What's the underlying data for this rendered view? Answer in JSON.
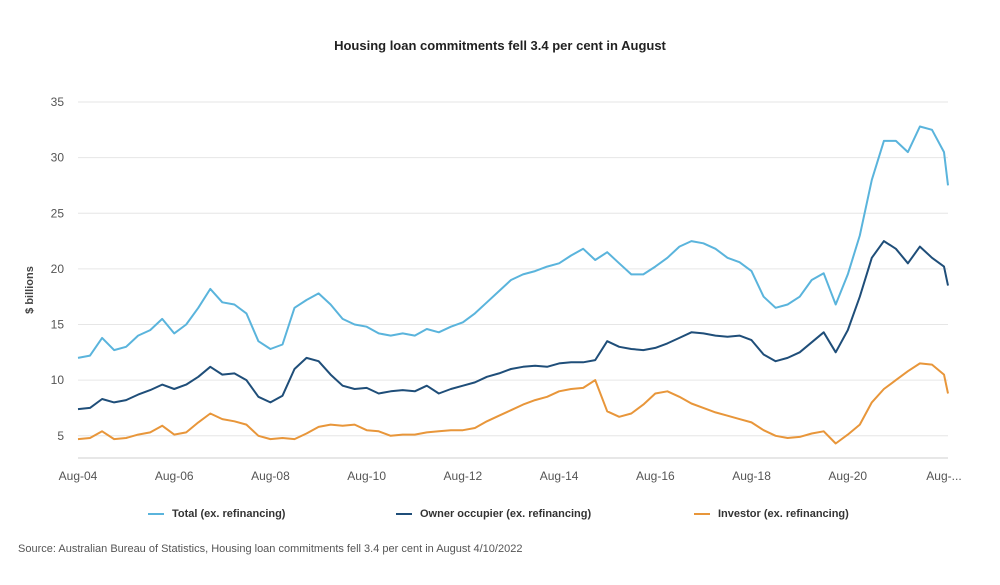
{
  "chart_data": {
    "type": "line",
    "title": "Housing loan commitments fell 3.4 per cent in August",
    "ylabel": "$ billions",
    "xlabel": "",
    "ylim": [
      3,
      35
    ],
    "yticks": [
      5,
      10,
      15,
      20,
      25,
      30,
      35
    ],
    "xlim": [
      "Aug-04",
      "Sep-22"
    ],
    "xticks": [
      {
        "date": "Aug-04",
        "label": "Aug-04"
      },
      {
        "date": "Aug-06",
        "label": "Aug-06"
      },
      {
        "date": "Aug-08",
        "label": "Aug-08"
      },
      {
        "date": "Aug-10",
        "label": "Aug-10"
      },
      {
        "date": "Aug-12",
        "label": "Aug-12"
      },
      {
        "date": "Aug-14",
        "label": "Aug-14"
      },
      {
        "date": "Aug-16",
        "label": "Aug-16"
      },
      {
        "date": "Aug-18",
        "label": "Aug-18"
      },
      {
        "date": "Aug-20",
        "label": "Aug-20"
      },
      {
        "date": "Aug-22",
        "label": "Aug-..."
      }
    ],
    "grid": "horizontal",
    "legend_position": "bottom",
    "series": [
      {
        "name": "Total (ex. refinancing)",
        "color": "#5ab4dc",
        "points": [
          [
            "Aug-04",
            12.0
          ],
          [
            "Nov-04",
            12.2
          ],
          [
            "Feb-05",
            13.8
          ],
          [
            "May-05",
            12.7
          ],
          [
            "Aug-05",
            13.0
          ],
          [
            "Nov-05",
            14.0
          ],
          [
            "Feb-06",
            14.5
          ],
          [
            "May-06",
            15.5
          ],
          [
            "Aug-06",
            14.2
          ],
          [
            "Nov-06",
            15.0
          ],
          [
            "Feb-07",
            16.5
          ],
          [
            "May-07",
            18.2
          ],
          [
            "Aug-07",
            17.0
          ],
          [
            "Nov-07",
            16.8
          ],
          [
            "Feb-08",
            16.0
          ],
          [
            "May-08",
            13.5
          ],
          [
            "Aug-08",
            12.8
          ],
          [
            "Nov-08",
            13.2
          ],
          [
            "Feb-09",
            16.5
          ],
          [
            "May-09",
            17.2
          ],
          [
            "Aug-09",
            17.8
          ],
          [
            "Nov-09",
            16.8
          ],
          [
            "Feb-10",
            15.5
          ],
          [
            "May-10",
            15.0
          ],
          [
            "Aug-10",
            14.8
          ],
          [
            "Nov-10",
            14.2
          ],
          [
            "Feb-11",
            14.0
          ],
          [
            "May-11",
            14.2
          ],
          [
            "Aug-11",
            14.0
          ],
          [
            "Nov-11",
            14.6
          ],
          [
            "Feb-12",
            14.3
          ],
          [
            "May-12",
            14.8
          ],
          [
            "Aug-12",
            15.2
          ],
          [
            "Nov-12",
            16.0
          ],
          [
            "Feb-13",
            17.0
          ],
          [
            "May-13",
            18.0
          ],
          [
            "Aug-13",
            19.0
          ],
          [
            "Nov-13",
            19.5
          ],
          [
            "Feb-14",
            19.8
          ],
          [
            "May-14",
            20.2
          ],
          [
            "Aug-14",
            20.5
          ],
          [
            "Nov-14",
            21.2
          ],
          [
            "Feb-15",
            21.8
          ],
          [
            "May-15",
            20.8
          ],
          [
            "Aug-15",
            21.5
          ],
          [
            "Nov-15",
            20.5
          ],
          [
            "Feb-16",
            19.5
          ],
          [
            "May-16",
            19.5
          ],
          [
            "Aug-16",
            20.2
          ],
          [
            "Nov-16",
            21.0
          ],
          [
            "Feb-17",
            22.0
          ],
          [
            "May-17",
            22.5
          ],
          [
            "Aug-17",
            22.3
          ],
          [
            "Nov-17",
            21.8
          ],
          [
            "Feb-18",
            21.0
          ],
          [
            "May-18",
            20.6
          ],
          [
            "Aug-18",
            19.8
          ],
          [
            "Nov-18",
            17.5
          ],
          [
            "Feb-19",
            16.5
          ],
          [
            "May-19",
            16.8
          ],
          [
            "Aug-19",
            17.5
          ],
          [
            "Nov-19",
            19.0
          ],
          [
            "Feb-20",
            19.6
          ],
          [
            "May-20",
            16.8
          ],
          [
            "Aug-20",
            19.5
          ],
          [
            "Nov-20",
            23.0
          ],
          [
            "Feb-21",
            28.0
          ],
          [
            "May-21",
            31.5
          ],
          [
            "Aug-21",
            31.5
          ],
          [
            "Nov-21",
            30.5
          ],
          [
            "Feb-22",
            32.8
          ],
          [
            "May-22",
            32.5
          ],
          [
            "Aug-22",
            30.5
          ],
          [
            "Sep-22",
            27.5
          ]
        ]
      },
      {
        "name": "Owner occupier (ex. refinancing)",
        "color": "#1f4e79",
        "points": [
          [
            "Aug-04",
            7.4
          ],
          [
            "Nov-04",
            7.5
          ],
          [
            "Feb-05",
            8.3
          ],
          [
            "May-05",
            8.0
          ],
          [
            "Aug-05",
            8.2
          ],
          [
            "Nov-05",
            8.7
          ],
          [
            "Feb-06",
            9.1
          ],
          [
            "May-06",
            9.6
          ],
          [
            "Aug-06",
            9.2
          ],
          [
            "Nov-06",
            9.6
          ],
          [
            "Feb-07",
            10.3
          ],
          [
            "May-07",
            11.2
          ],
          [
            "Aug-07",
            10.5
          ],
          [
            "Nov-07",
            10.6
          ],
          [
            "Feb-08",
            10.0
          ],
          [
            "May-08",
            8.5
          ],
          [
            "Aug-08",
            8.0
          ],
          [
            "Nov-08",
            8.6
          ],
          [
            "Feb-09",
            11.0
          ],
          [
            "May-09",
            12.0
          ],
          [
            "Aug-09",
            11.7
          ],
          [
            "Nov-09",
            10.5
          ],
          [
            "Feb-10",
            9.5
          ],
          [
            "May-10",
            9.2
          ],
          [
            "Aug-10",
            9.3
          ],
          [
            "Nov-10",
            8.8
          ],
          [
            "Feb-11",
            9.0
          ],
          [
            "May-11",
            9.1
          ],
          [
            "Aug-11",
            9.0
          ],
          [
            "Nov-11",
            9.5
          ],
          [
            "Feb-12",
            8.8
          ],
          [
            "May-12",
            9.2
          ],
          [
            "Aug-12",
            9.5
          ],
          [
            "Nov-12",
            9.8
          ],
          [
            "Feb-13",
            10.3
          ],
          [
            "May-13",
            10.6
          ],
          [
            "Aug-13",
            11.0
          ],
          [
            "Nov-13",
            11.2
          ],
          [
            "Feb-14",
            11.3
          ],
          [
            "May-14",
            11.2
          ],
          [
            "Aug-14",
            11.5
          ],
          [
            "Nov-14",
            11.6
          ],
          [
            "Feb-15",
            11.6
          ],
          [
            "May-15",
            11.8
          ],
          [
            "Aug-15",
            13.5
          ],
          [
            "Nov-15",
            13.0
          ],
          [
            "Feb-16",
            12.8
          ],
          [
            "May-16",
            12.7
          ],
          [
            "Aug-16",
            12.9
          ],
          [
            "Nov-16",
            13.3
          ],
          [
            "Feb-17",
            13.8
          ],
          [
            "May-17",
            14.3
          ],
          [
            "Aug-17",
            14.2
          ],
          [
            "Nov-17",
            14.0
          ],
          [
            "Feb-18",
            13.9
          ],
          [
            "May-18",
            14.0
          ],
          [
            "Aug-18",
            13.6
          ],
          [
            "Nov-18",
            12.3
          ],
          [
            "Feb-19",
            11.7
          ],
          [
            "May-19",
            12.0
          ],
          [
            "Aug-19",
            12.5
          ],
          [
            "Nov-19",
            13.4
          ],
          [
            "Feb-20",
            14.3
          ],
          [
            "May-20",
            12.5
          ],
          [
            "Aug-20",
            14.5
          ],
          [
            "Nov-20",
            17.5
          ],
          [
            "Feb-21",
            21.0
          ],
          [
            "May-21",
            22.5
          ],
          [
            "Aug-21",
            21.8
          ],
          [
            "Nov-21",
            20.5
          ],
          [
            "Feb-22",
            22.0
          ],
          [
            "May-22",
            21.0
          ],
          [
            "Aug-22",
            20.2
          ],
          [
            "Sep-22",
            18.5
          ]
        ]
      },
      {
        "name": "Investor (ex. refinancing)",
        "color": "#e8963a",
        "points": [
          [
            "Aug-04",
            4.7
          ],
          [
            "Nov-04",
            4.8
          ],
          [
            "Feb-05",
            5.4
          ],
          [
            "May-05",
            4.7
          ],
          [
            "Aug-05",
            4.8
          ],
          [
            "Nov-05",
            5.1
          ],
          [
            "Feb-06",
            5.3
          ],
          [
            "May-06",
            5.9
          ],
          [
            "Aug-06",
            5.1
          ],
          [
            "Nov-06",
            5.3
          ],
          [
            "Feb-07",
            6.2
          ],
          [
            "May-07",
            7.0
          ],
          [
            "Aug-07",
            6.5
          ],
          [
            "Nov-07",
            6.3
          ],
          [
            "Feb-08",
            6.0
          ],
          [
            "May-08",
            5.0
          ],
          [
            "Aug-08",
            4.7
          ],
          [
            "Nov-08",
            4.8
          ],
          [
            "Feb-09",
            4.7
          ],
          [
            "May-09",
            5.2
          ],
          [
            "Aug-09",
            5.8
          ],
          [
            "Nov-09",
            6.0
          ],
          [
            "Feb-10",
            5.9
          ],
          [
            "May-10",
            6.0
          ],
          [
            "Aug-10",
            5.5
          ],
          [
            "Nov-10",
            5.4
          ],
          [
            "Feb-11",
            5.0
          ],
          [
            "May-11",
            5.1
          ],
          [
            "Aug-11",
            5.1
          ],
          [
            "Nov-11",
            5.3
          ],
          [
            "Feb-12",
            5.4
          ],
          [
            "May-12",
            5.5
          ],
          [
            "Aug-12",
            5.5
          ],
          [
            "Nov-12",
            5.7
          ],
          [
            "Feb-13",
            6.3
          ],
          [
            "May-13",
            6.8
          ],
          [
            "Aug-13",
            7.3
          ],
          [
            "Nov-13",
            7.8
          ],
          [
            "Feb-14",
            8.2
          ],
          [
            "May-14",
            8.5
          ],
          [
            "Aug-14",
            9.0
          ],
          [
            "Nov-14",
            9.2
          ],
          [
            "Feb-15",
            9.3
          ],
          [
            "May-15",
            10.0
          ],
          [
            "Aug-15",
            7.2
          ],
          [
            "Nov-15",
            6.7
          ],
          [
            "Feb-16",
            7.0
          ],
          [
            "May-16",
            7.8
          ],
          [
            "Aug-16",
            8.8
          ],
          [
            "Nov-16",
            9.0
          ],
          [
            "Feb-17",
            8.5
          ],
          [
            "May-17",
            7.9
          ],
          [
            "Aug-17",
            7.5
          ],
          [
            "Nov-17",
            7.1
          ],
          [
            "Feb-18",
            6.8
          ],
          [
            "May-18",
            6.5
          ],
          [
            "Aug-18",
            6.2
          ],
          [
            "Nov-18",
            5.5
          ],
          [
            "Feb-19",
            5.0
          ],
          [
            "May-19",
            4.8
          ],
          [
            "Aug-19",
            4.9
          ],
          [
            "Nov-19",
            5.2
          ],
          [
            "Feb-20",
            5.4
          ],
          [
            "May-20",
            4.3
          ],
          [
            "Aug-20",
            5.1
          ],
          [
            "Nov-20",
            6.0
          ],
          [
            "Feb-21",
            8.0
          ],
          [
            "May-21",
            9.2
          ],
          [
            "Aug-21",
            10.0
          ],
          [
            "Nov-21",
            10.8
          ],
          [
            "Feb-22",
            11.5
          ],
          [
            "May-22",
            11.4
          ],
          [
            "Aug-22",
            10.5
          ],
          [
            "Sep-22",
            8.8
          ]
        ]
      }
    ]
  },
  "footer": {
    "source": "Source: Australian Bureau of Statistics, Housing loan commitments fell 3.4 per cent in August 4/10/2022"
  }
}
